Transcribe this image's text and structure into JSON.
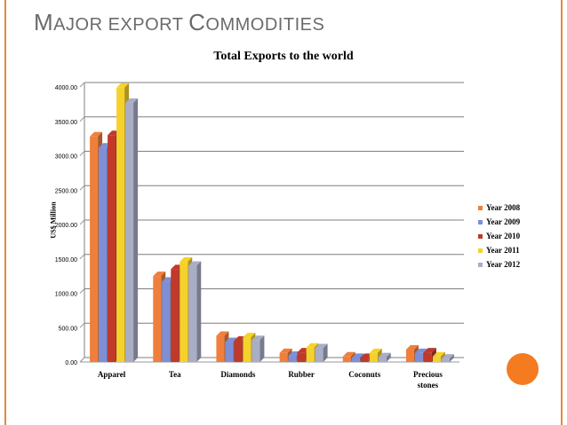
{
  "slide": {
    "title_caps": [
      "M",
      "AJOR EXPORT ",
      "C",
      "OMMODITIES"
    ]
  },
  "colors": {
    "accent": "#e58a3a",
    "dot": "#f47b20"
  },
  "chart_data": {
    "type": "bar",
    "title": "Total Exports to the world",
    "xlabel": "",
    "ylabel": "US$ Million",
    "ylim": [
      0,
      4000
    ],
    "yticks": [
      "0.00",
      "500.00",
      "1000.00",
      "1500.00",
      "2000.00",
      "2500.00",
      "3000.00",
      "3500.00",
      "4000.00"
    ],
    "categories": [
      "Apparel",
      "Tea",
      "Diamonds",
      "Rubber",
      "Coconuts",
      "Precious stones"
    ],
    "category_lines": [
      [
        "Apparel"
      ],
      [
        "Tea"
      ],
      [
        "Diamonds"
      ],
      [
        "Rubber"
      ],
      [
        "Coconuts"
      ],
      [
        "Precious",
        "stones"
      ]
    ],
    "legend_position": "right",
    "grid": true,
    "series": [
      {
        "name": "Year 2008",
        "color": "#f07f3c",
        "values": [
          3280,
          1250,
          380,
          130,
          80,
          180
        ]
      },
      {
        "name": "Year 2009",
        "color": "#7f8fd6",
        "values": [
          3120,
          1170,
          290,
          90,
          60,
          130
        ]
      },
      {
        "name": "Year 2010",
        "color": "#c0392b",
        "values": [
          3300,
          1350,
          310,
          140,
          60,
          140
        ]
      },
      {
        "name": "Year 2011",
        "color": "#f5d22b",
        "values": [
          3990,
          1460,
          360,
          210,
          130,
          80
        ]
      },
      {
        "name": "Year 2012",
        "color": "#a9aec6",
        "values": [
          3770,
          1400,
          320,
          200,
          70,
          50
        ]
      }
    ]
  }
}
